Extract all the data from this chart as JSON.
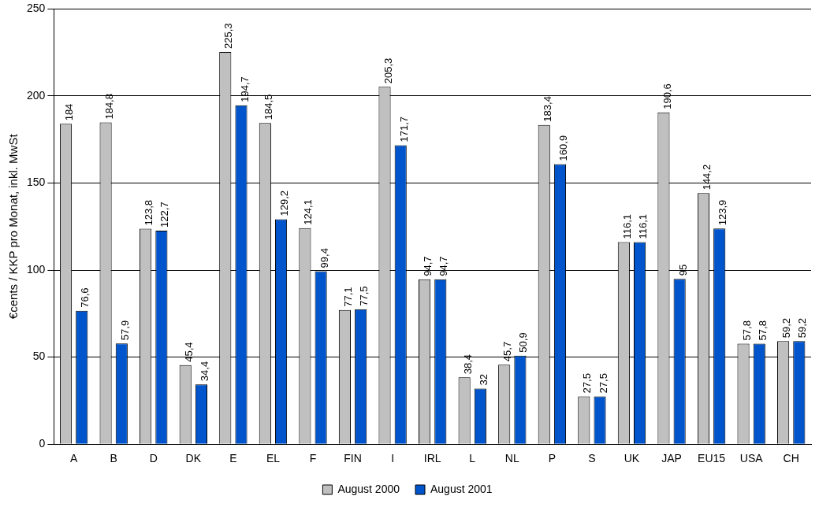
{
  "chart_data": {
    "type": "bar",
    "ylabel": "€cents / KKP pro Monat, inkl. MwSt",
    "categories": [
      "A",
      "B",
      "D",
      "DK",
      "E",
      "EL",
      "F",
      "FIN",
      "I",
      "IRL",
      "L",
      "NL",
      "P",
      "S",
      "UK",
      "JAP",
      "EU15",
      "USA",
      "CH"
    ],
    "series": [
      {
        "name": "August 2000",
        "color": "#c0c0c0",
        "values": [
          184,
          184.8,
          123.8,
          45.4,
          225.3,
          184.5,
          124.1,
          77.1,
          205.3,
          94.7,
          38.4,
          45.7,
          183.4,
          27.5,
          116.1,
          190.6,
          144.2,
          57.8,
          59.2
        ],
        "value_labels": [
          "184",
          "184,8",
          "123,8",
          "45,4",
          "225,3",
          "184,5",
          "124,1",
          "77,1",
          "205,3",
          "94,7",
          "38,4",
          "45,7",
          "183,4",
          "27,5",
          "116,1",
          "190,6",
          "144,2",
          "57,8",
          "59,2"
        ]
      },
      {
        "name": "August 2001",
        "color": "#0055cc",
        "values": [
          76.6,
          57.9,
          122.7,
          34.4,
          194.7,
          129.2,
          99.4,
          77.5,
          171.7,
          94.7,
          32,
          50.9,
          160.9,
          27.5,
          116.1,
          95,
          123.9,
          57.8,
          59.2
        ],
        "value_labels": [
          "76,6",
          "57,9",
          "122,7",
          "34,4",
          "194,7",
          "129,2",
          "99,4",
          "77,5",
          "171,7",
          "94,7",
          "32",
          "50,9",
          "160,9",
          "27,5",
          "116,1",
          "95",
          "123,9",
          "57,8",
          "59,2"
        ]
      }
    ],
    "ylim": [
      0,
      250
    ],
    "yticks": [
      0,
      50,
      100,
      150,
      200,
      250
    ],
    "grid": "y",
    "legend": "bottom"
  }
}
